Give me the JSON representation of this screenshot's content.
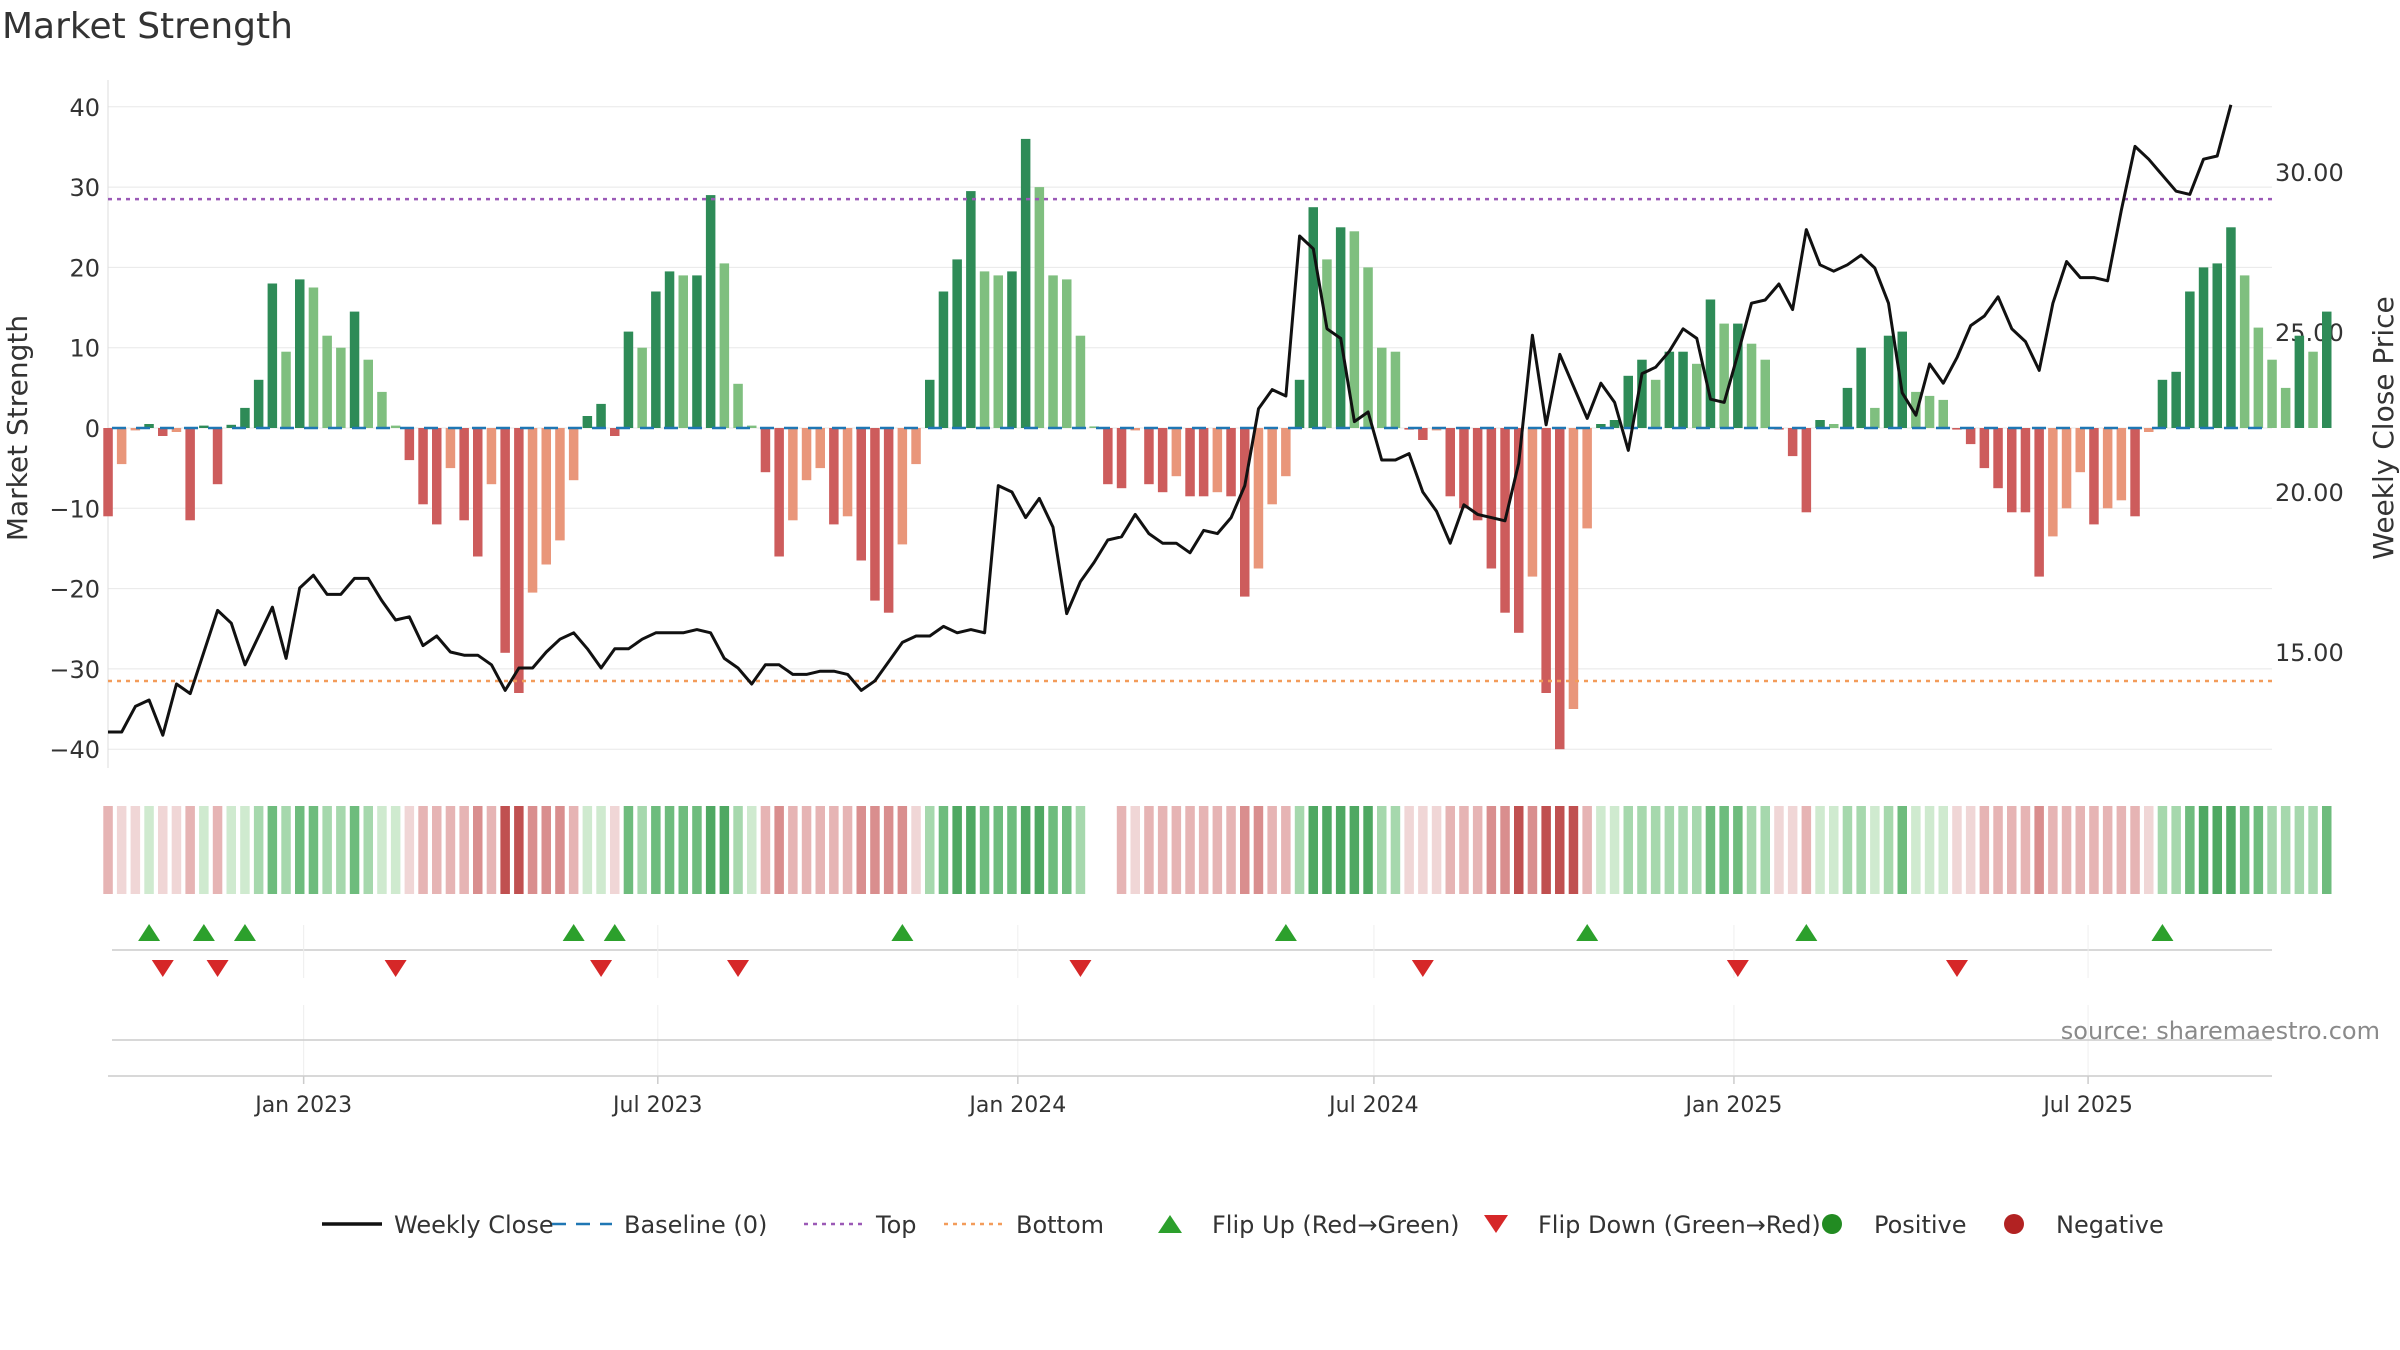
{
  "chart_data": {
    "type": "bar",
    "title": "Market Strength",
    "ylabel_left": "Market Strength",
    "ylabel_right": "Weekly Close Price",
    "ylim_left": [
      -43,
      43
    ],
    "ylim_right": [
      11.5,
      33.0
    ],
    "yticks_left": [
      40,
      30,
      20,
      10,
      0,
      -10,
      -20,
      -30,
      -40
    ],
    "ytick_labels_left": [
      "40",
      "30",
      "20",
      "10",
      "0",
      "−10",
      "−20",
      "−30",
      "−40"
    ],
    "yticks_right": [
      30,
      25,
      20,
      15
    ],
    "ytick_labels_right": [
      "30.00",
      "25.00",
      "20.00",
      "15.00"
    ],
    "x_start": "2022-09-23",
    "x_end": "2025-10-03",
    "xtick_dates": [
      "2023-01-01",
      "2023-07-01",
      "2024-01-01",
      "2024-07-01",
      "2025-01-01",
      "2025-07-01"
    ],
    "xtick_labels": [
      "Jan 2023",
      "Jul 2023",
      "Jan 2024",
      "Jul 2024",
      "Jan 2025",
      "Jul 2025"
    ],
    "first_week": "2022-09-23",
    "top_line": 28.5,
    "bottom_line": -31.5,
    "strength_values": [
      -11,
      -4.5,
      -0.3,
      0.5,
      -1,
      -0.5,
      -11.5,
      0.3,
      -7,
      0.4,
      2.5,
      6,
      18,
      9.5,
      18.5,
      17.5,
      11.5,
      10,
      14.5,
      8.5,
      4.5,
      0.3,
      -4,
      -9.5,
      -12,
      -5,
      -11.5,
      -16,
      -7,
      -28,
      -33,
      -20.5,
      -17,
      -14,
      -6.5,
      1.5,
      3,
      -1,
      12,
      10,
      17,
      19.5,
      19,
      19,
      29,
      20.5,
      5.5,
      0.3,
      -5.5,
      -16,
      -11.5,
      -6.5,
      -5,
      -12,
      -11,
      -16.5,
      -21.5,
      -23,
      -14.5,
      -4.5,
      6,
      17,
      21,
      29.5,
      19.5,
      19,
      19.5,
      36,
      30,
      19,
      18.5,
      11.5,
      0.2,
      -7,
      -7.5,
      -0.3,
      -7,
      -8,
      -6,
      -8.5,
      -8.5,
      -8,
      -8.5,
      -21,
      -17.5,
      -9.5,
      -6,
      6,
      27.5,
      21,
      25,
      24.5,
      20,
      10,
      9.5,
      -0.2,
      -1.5,
      -0.3,
      -8.5,
      -10,
      -11.5,
      -17.5,
      -23,
      -25.5,
      -18.5,
      -33,
      -40,
      -35,
      -12.5,
      0.5,
      1,
      6.5,
      8.5,
      6,
      9.5,
      9.5,
      8,
      16,
      13,
      13,
      10.5,
      8.5,
      -0.2,
      -3.5,
      -10.5,
      1,
      0.5,
      5,
      10,
      2.5,
      11.5,
      12,
      4.5,
      4,
      3.5,
      -0.2,
      -2,
      -5,
      -7.5,
      -10.5,
      -10.5,
      -18.5,
      -13.5,
      -10,
      -5.5,
      -12,
      -10,
      -9,
      -11,
      -0.5,
      6,
      7,
      17,
      20,
      20.5,
      25,
      19,
      12.5,
      8.5,
      5,
      11.5,
      9.5,
      14.5
    ],
    "close_values": [
      12.5,
      12.5,
      13.3,
      13.5,
      12.4,
      14,
      13.7,
      15,
      16.3,
      15.9,
      14.6,
      15.5,
      16.4,
      14.8,
      17,
      17.4,
      16.8,
      16.8,
      17.3,
      17.3,
      16.6,
      16,
      16.1,
      15.2,
      15.5,
      15,
      14.9,
      14.9,
      14.6,
      13.8,
      14.5,
      14.5,
      15,
      15.4,
      15.6,
      15.1,
      14.5,
      15.1,
      15.1,
      15.4,
      15.6,
      15.6,
      15.6,
      15.7,
      15.6,
      14.8,
      14.5,
      14,
      14.6,
      14.6,
      14.3,
      14.3,
      14.4,
      14.4,
      14.3,
      13.8,
      14.1,
      14.7,
      15.3,
      15.5,
      15.5,
      15.8,
      15.6,
      15.7,
      15.6,
      20.2,
      20,
      19.2,
      19.8,
      18.9,
      16.2,
      17.2,
      17.8,
      18.5,
      18.6,
      19.3,
      18.7,
      18.4,
      18.4,
      18.1,
      18.8,
      18.7,
      19.2,
      20.2,
      22.6,
      23.2,
      23,
      28,
      27.6,
      25.1,
      24.8,
      22.2,
      22.5,
      21,
      21,
      21.2,
      20,
      19.4,
      18.4,
      19.6,
      19.3,
      19.2,
      19.1,
      20.9,
      24.9,
      22.1,
      24.3,
      23.3,
      22.3,
      23.4,
      22.8,
      21.3,
      23.7,
      23.9,
      24.4,
      25.1,
      24.8,
      22.9,
      22.8,
      24.3,
      25.9,
      26,
      26.5,
      25.7,
      28.2,
      27.1,
      26.9,
      27.1,
      27.4,
      27,
      25.9,
      23.1,
      22.4,
      24,
      23.4,
      24.2,
      25.2,
      25.5,
      26.1,
      25.1,
      24.7,
      23.8,
      25.9,
      27.2,
      26.7,
      26.7,
      26.6,
      28.8,
      30.8,
      30.4,
      29.9,
      29.4,
      29.3,
      30.4,
      30.5,
      32.1
    ]
  },
  "strip": {
    "gap_indices": [
      72,
      73
    ],
    "colors": {
      "green_strong": "#4fa862",
      "green_mid": "#6ebc7d",
      "green_light": "#a6d8ad",
      "green_pale": "#cfeacf",
      "red_strong": "#c05050",
      "red_mid": "#d98e8e",
      "red_light": "#e6b4b4",
      "red_pale": "#f0d6d6"
    }
  },
  "flips": {
    "up_indices": [
      3,
      7,
      10,
      34,
      37,
      58,
      86,
      108,
      124,
      150
    ],
    "down_indices": [
      4,
      8,
      21,
      36,
      46,
      71,
      96,
      119,
      135
    ]
  },
  "source": "source: sharemaestro.com",
  "legend": [
    {
      "label": "Weekly Close",
      "kind": "line-solid",
      "color": "#111111"
    },
    {
      "label": "Baseline (0)",
      "kind": "line-dash",
      "color": "#1f77b4"
    },
    {
      "label": "Top",
      "kind": "line-dot",
      "color": "#9b59b6"
    },
    {
      "label": "Bottom",
      "kind": "line-dot",
      "color": "#f39c5a"
    },
    {
      "label": "Flip Up (Red→Green)",
      "kind": "tri-up",
      "color": "#2ca02c"
    },
    {
      "label": "Flip Down (Green→Red)",
      "kind": "tri-down",
      "color": "#d62728"
    },
    {
      "label": "Positive",
      "kind": "dot",
      "color": "#228b22"
    },
    {
      "label": "Negative",
      "kind": "dot",
      "color": "#b22222"
    }
  ],
  "colors": {
    "pos_dark": "#2e8b57",
    "pos_light": "#7fbf7f",
    "neg_dark": "#cd5c5c",
    "neg_light": "#e9967a",
    "baseline": "#1f77b4",
    "top": "#9b59b6",
    "bottom": "#f39c5a",
    "price": "#111111",
    "grid": "#e8e8e8",
    "text": "#333333"
  }
}
